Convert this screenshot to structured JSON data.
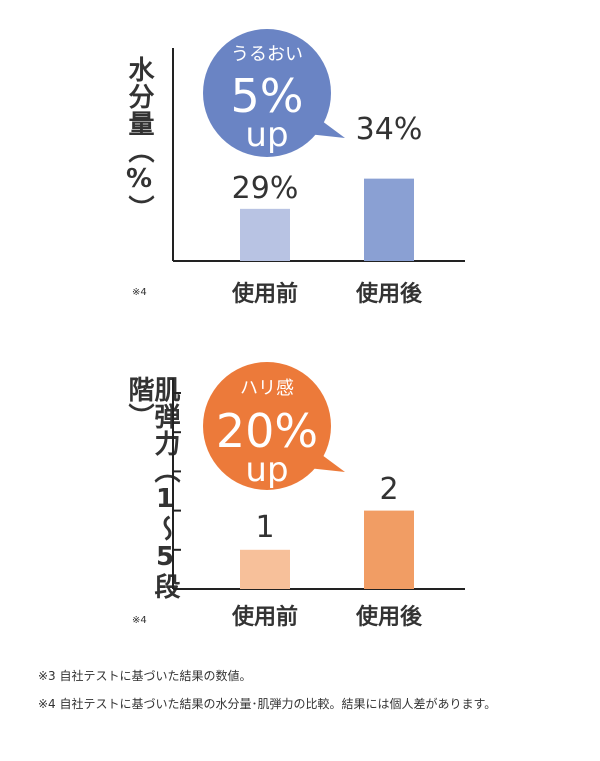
{
  "chart_data": [
    {
      "type": "bar",
      "ylabel": "水分量（%）",
      "categories": [
        "使用前",
        "使用後"
      ],
      "values": [
        29,
        34
      ],
      "value_labels": [
        "29%",
        "34%"
      ],
      "colors": [
        "#b8c3e3",
        "#8aa0d3"
      ],
      "bubble": {
        "label": "うるおい",
        "big": "5%",
        "unit": "up",
        "color": "#6a84c4"
      },
      "note": "※4"
    },
    {
      "type": "bar",
      "ylabel": "肌弾力（1〜5段階）",
      "categories": [
        "使用前",
        "使用後"
      ],
      "values": [
        1,
        2
      ],
      "value_labels": [
        "1",
        "2"
      ],
      "ylim": [
        0,
        5
      ],
      "colors": [
        "#f7c09a",
        "#f19d64"
      ],
      "bubble": {
        "label": "ハリ感",
        "big": "20%",
        "unit": "up",
        "color": "#ec7a3a"
      },
      "note": "※4"
    }
  ],
  "footnotes": [
    "※3  自社テストに基づいた結果の数値。",
    "※4  自社テストに基づいた結果の水分量･肌弾力の比較。結果には個人差があります。"
  ]
}
